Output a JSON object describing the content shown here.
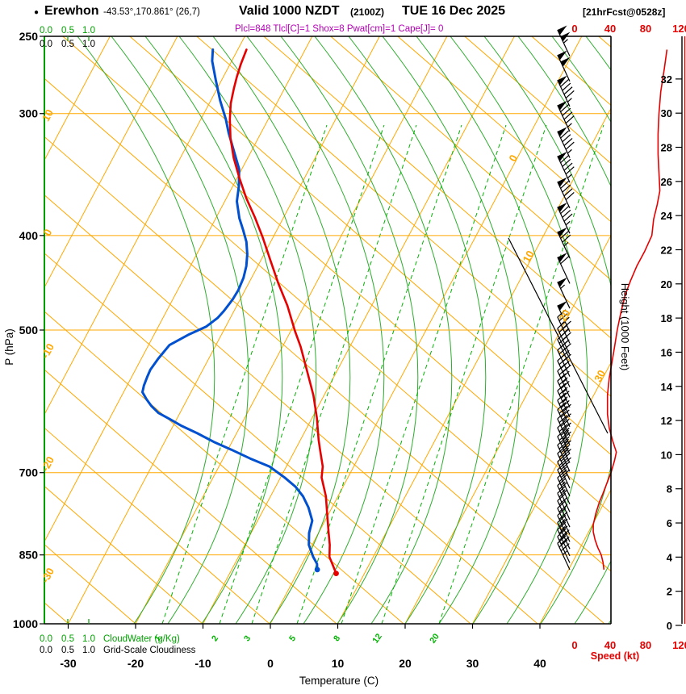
{
  "header": {
    "bullet": "●",
    "station": "Erewhon",
    "coords": "-43.53°,170.861° (26,7)",
    "valid": "Valid 1000 NZDT",
    "valid_z": "(2100Z)",
    "date": "TUE 16 Dec 2025",
    "fcst": "[21hrFcst@0528z]",
    "params": "Plcl=848 Tlcl[C]=1 Shox=8 Pwat[cm]=1 Cape[J]= 0"
  },
  "axes": {
    "pressure_label": "P (hPa)",
    "pressure_ticks": [
      250,
      300,
      400,
      500,
      700,
      850,
      1000
    ],
    "temp_label": "Temperature (C)",
    "temp_ticks": [
      -30,
      -20,
      -10,
      0,
      10,
      20,
      30,
      40
    ],
    "height_label": "Height (1000 Feet)",
    "height_ticks": [
      0,
      2,
      4,
      6,
      8,
      10,
      12,
      14,
      16,
      18,
      20,
      22,
      24,
      26,
      28,
      30,
      32
    ],
    "speed_label": "Speed (kt)",
    "speed_ticks": [
      0,
      40,
      80,
      120
    ],
    "cloudwater_scale": [
      "0.0",
      "0.5",
      "1.0"
    ],
    "cloudwater_label": "CloudWater (g/Kg)",
    "cloudiness_scale": [
      "0.0",
      "0.5",
      "1.0"
    ],
    "cloudiness_label": "Grid-Scale Cloudiness"
  },
  "chart_data": {
    "type": "skewt-log-p-sounding",
    "pressure_range_hpa": [
      250,
      1000
    ],
    "temp_axis_range_c": [
      -30,
      40
    ],
    "height_axis_range_kft": [
      0,
      32
    ],
    "speed_axis_range_kt": [
      0,
      120
    ],
    "isotherm_labels_inplot_c": [
      0,
      10,
      20,
      30
    ],
    "isotherm_labels_left_c": [
      "10",
      "0",
      "-10",
      "-20",
      "-30"
    ],
    "mixing_ratio_labels_gkg": [
      "1",
      "2",
      "3",
      "5",
      "8",
      "12",
      "20"
    ],
    "temperature_profile_c": [
      [
        888,
        5.8
      ],
      [
        870,
        4.6
      ],
      [
        854,
        3.5
      ],
      [
        830,
        2.6
      ],
      [
        805,
        1.4
      ],
      [
        776,
        0.0
      ],
      [
        740,
        -1.8
      ],
      [
        708,
        -3.9
      ],
      [
        690,
        -4.6
      ],
      [
        665,
        -6.2
      ],
      [
        648,
        -7.3
      ],
      [
        615,
        -9.3
      ],
      [
        583,
        -11.6
      ],
      [
        550,
        -14.5
      ],
      [
        520,
        -17.3
      ],
      [
        501,
        -19.4
      ],
      [
        472,
        -22.5
      ],
      [
        447,
        -25.7
      ],
      [
        424,
        -28.6
      ],
      [
        402,
        -31.5
      ],
      [
        383,
        -34.3
      ],
      [
        366,
        -37.1
      ],
      [
        349,
        -39.7
      ],
      [
        333,
        -42.1
      ],
      [
        318,
        -44.1
      ],
      [
        304,
        -45.7
      ],
      [
        293,
        -46.8
      ],
      [
        283,
        -47.5
      ],
      [
        275,
        -48.0
      ],
      [
        267,
        -48.4
      ],
      [
        258,
        -48.7
      ]
    ],
    "dewpoint_profile_c": [
      [
        880,
        2.7
      ],
      [
        868,
        2.2
      ],
      [
        854,
        1.1
      ],
      [
        830,
        -0.5
      ],
      [
        807,
        -1.4
      ],
      [
        784,
        -1.9
      ],
      [
        760,
        -3.5
      ],
      [
        740,
        -5.2
      ],
      [
        724,
        -7.0
      ],
      [
        708,
        -9.4
      ],
      [
        690,
        -12.5
      ],
      [
        677,
        -16.0
      ],
      [
        663,
        -19.5
      ],
      [
        651,
        -22.7
      ],
      [
        638,
        -25.8
      ],
      [
        627,
        -28.7
      ],
      [
        617,
        -31.0
      ],
      [
        608,
        -33.2
      ],
      [
        598,
        -34.8
      ],
      [
        589,
        -36.0
      ],
      [
        579,
        -37.2
      ],
      [
        570,
        -37.5
      ],
      [
        558,
        -37.7
      ],
      [
        549,
        -37.8
      ],
      [
        535,
        -37.5
      ],
      [
        518,
        -36.9
      ],
      [
        505,
        -34.8
      ],
      [
        496,
        -32.9
      ],
      [
        486,
        -31.9
      ],
      [
        478,
        -31.5
      ],
      [
        465,
        -31.1
      ],
      [
        455,
        -31.0
      ],
      [
        442,
        -31.2
      ],
      [
        430,
        -31.7
      ],
      [
        418,
        -32.5
      ],
      [
        406,
        -33.6
      ],
      [
        395,
        -35.0
      ],
      [
        384,
        -36.5
      ],
      [
        369,
        -38.2
      ],
      [
        356,
        -39.1
      ],
      [
        342,
        -40.4
      ],
      [
        329,
        -42.4
      ],
      [
        314,
        -44.8
      ],
      [
        304,
        -46.3
      ],
      [
        291,
        -48.6
      ],
      [
        277,
        -50.9
      ],
      [
        265,
        -52.9
      ],
      [
        258,
        -53.7
      ]
    ],
    "wind_speed_profile_kt": [
      [
        258,
        104
      ],
      [
        270,
        101
      ],
      [
        285,
        97
      ],
      [
        300,
        95
      ],
      [
        315,
        94
      ],
      [
        330,
        94
      ],
      [
        345,
        95
      ],
      [
        360,
        96
      ],
      [
        372,
        93
      ],
      [
        385,
        89
      ],
      [
        400,
        87
      ],
      [
        415,
        79
      ],
      [
        430,
        70
      ],
      [
        445,
        63
      ],
      [
        460,
        57
      ],
      [
        480,
        52
      ],
      [
        500,
        48
      ],
      [
        520,
        45
      ],
      [
        540,
        42
      ],
      [
        560,
        39
      ],
      [
        583,
        37
      ],
      [
        610,
        37
      ],
      [
        630,
        39
      ],
      [
        650,
        43
      ],
      [
        667,
        47
      ],
      [
        680,
        45
      ],
      [
        700,
        41
      ],
      [
        719,
        36
      ],
      [
        735,
        32
      ],
      [
        750,
        28
      ],
      [
        770,
        24
      ],
      [
        791,
        21
      ],
      [
        805,
        21
      ],
      [
        820,
        23
      ],
      [
        835,
        26
      ],
      [
        850,
        30
      ],
      [
        865,
        32
      ],
      [
        880,
        33
      ]
    ],
    "wind_barb_levels_hpa": [
      880,
      866,
      852,
      838,
      824,
      810,
      796,
      782,
      768,
      754,
      740,
      726,
      712,
      698,
      684,
      670,
      656,
      642,
      628,
      614,
      600,
      586,
      572,
      558,
      544,
      530,
      516,
      502,
      475,
      448,
      422,
      398,
      375,
      353,
      333,
      313,
      295,
      278,
      262
    ],
    "wind_direction": "NW (barb staffs point up-left)",
    "colors": {
      "grid": "#ffa800",
      "moist_adiabat": "#2fae2f",
      "mixing_ratio": "#00b400",
      "temperature": "#e60000",
      "dewpoint": "#0050d0",
      "speed_curve": "#e60000",
      "barbs": "#000000",
      "params_text": "#b400b4",
      "cloudwater": "#00a000",
      "axis_red": "#e60000"
    }
  }
}
